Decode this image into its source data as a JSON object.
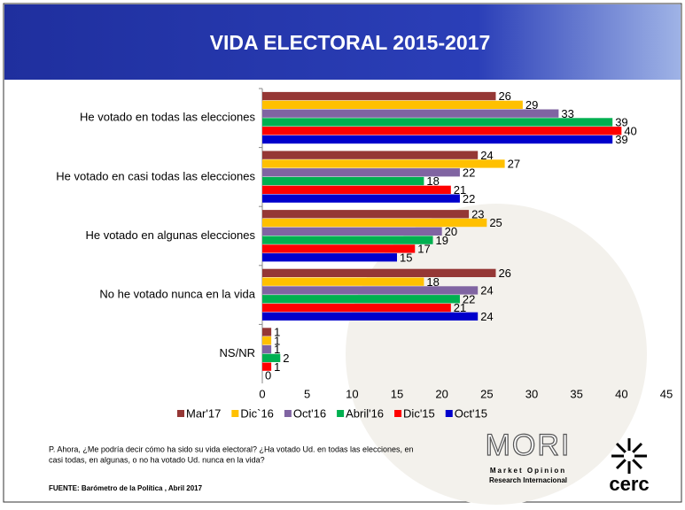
{
  "chart_data": {
    "type": "hbar",
    "title": "VIDA ELECTORAL  2015-2017",
    "categories": [
      "He votado en todas las elecciones",
      "He votado en casi todas las elecciones",
      "He votado en algunas elecciones",
      "No he votado nunca en la vida",
      "NS/NR"
    ],
    "series": [
      {
        "name": "Mar'17",
        "color": "#953735",
        "values": [
          26,
          24,
          23,
          26,
          1
        ]
      },
      {
        "name": "Dic`16",
        "color": "#FFC000",
        "values": [
          29,
          27,
          25,
          18,
          1
        ]
      },
      {
        "name": "Oct'16",
        "color": "#8064A2",
        "values": [
          33,
          22,
          20,
          24,
          1
        ]
      },
      {
        "name": "Abril'16",
        "color": "#00B050",
        "values": [
          39,
          18,
          19,
          22,
          2
        ]
      },
      {
        "name": "Dic'15",
        "color": "#FF0000",
        "values": [
          40,
          21,
          17,
          21,
          1
        ]
      },
      {
        "name": "Oct'15",
        "color": "#0000CC",
        "values": [
          39,
          22,
          15,
          24,
          0
        ]
      }
    ],
    "xlim": [
      0,
      45
    ],
    "xticks": [
      0,
      5,
      10,
      15,
      20,
      25,
      30,
      35,
      40,
      45
    ],
    "grid": false,
    "legend": "bottom",
    "note": "P. Ahora, ¿Me podría decir cómo ha sido su vida electoral? ¿Ha votado Ud. en todas las elecciones, en casi todas, en algunas, o no ha votado Ud. nunca en la vida?",
    "source": "FUENTE: Barómetro de la Política , Abril 2017"
  },
  "logos": {
    "mori": "MORI",
    "mori_line1": "Market Opinion",
    "mori_line2": "Research Internacional",
    "cerc": "cerc"
  }
}
